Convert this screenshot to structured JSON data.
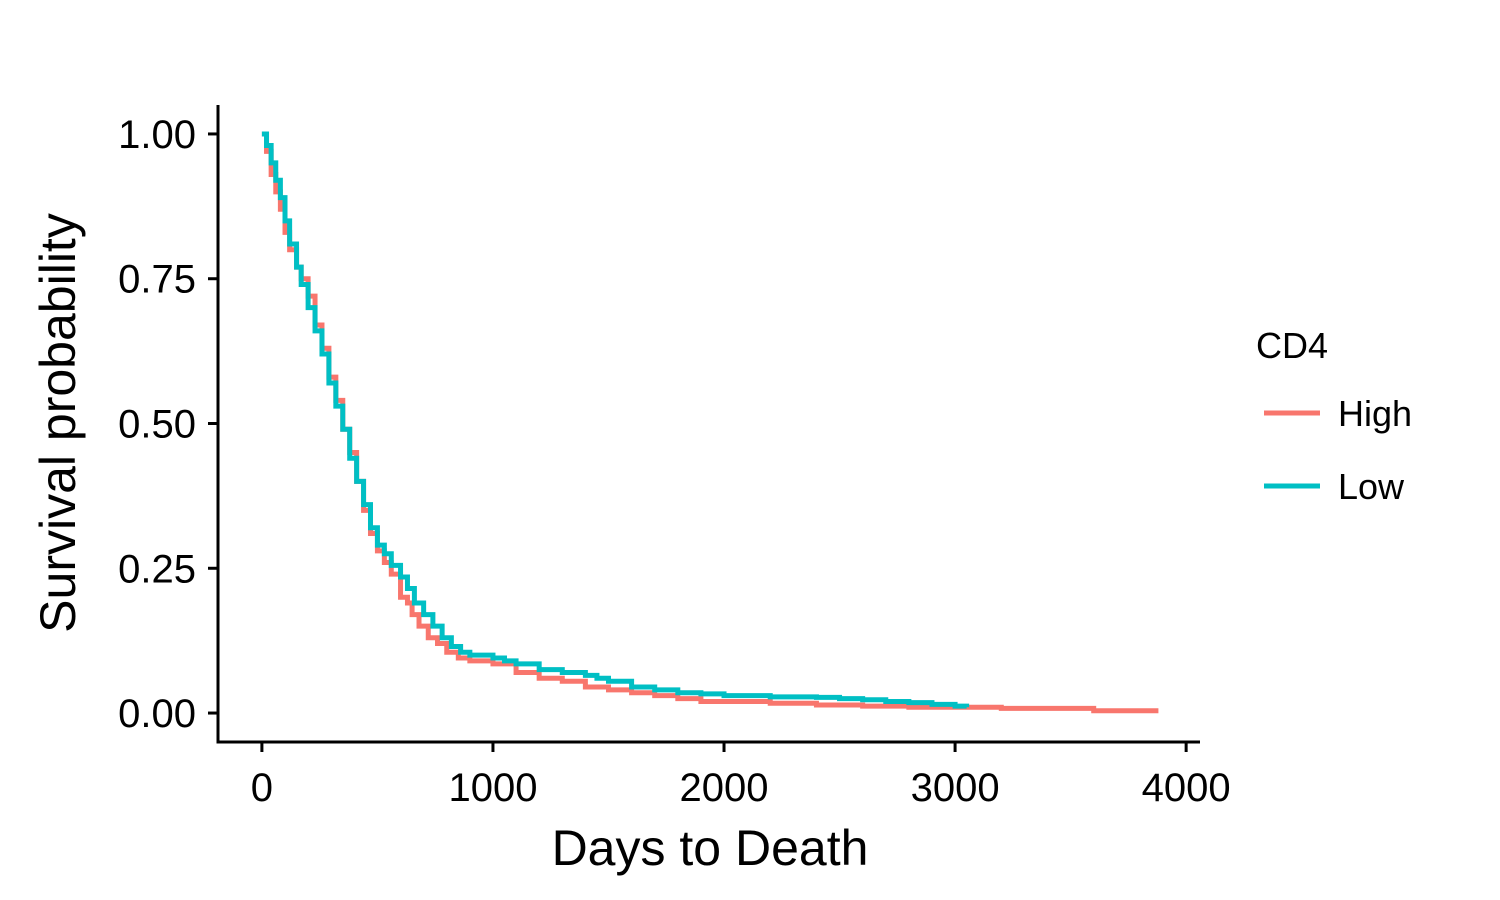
{
  "chart_data": {
    "type": "line",
    "xlabel": "Days to Death",
    "ylabel": "Survival probability",
    "xlim": [
      -190,
      4060
    ],
    "ylim": [
      -0.05,
      1.05
    ],
    "xticks": [
      0,
      1000,
      2000,
      3000,
      4000
    ],
    "xtick_labels": [
      "0",
      "1000",
      "2000",
      "3000",
      "4000"
    ],
    "yticks": [
      0,
      0.25,
      0.5,
      0.75,
      1.0
    ],
    "ytick_labels": [
      "0.00",
      "0.25",
      "0.50",
      "0.75",
      "1.00"
    ],
    "grid": false,
    "legend": {
      "title": "CD4",
      "placement": "right"
    },
    "series": [
      {
        "name": "High",
        "color": "#F8766D",
        "x": [
          0,
          20,
          40,
          60,
          80,
          100,
          120,
          150,
          170,
          200,
          230,
          260,
          290,
          320,
          350,
          380,
          410,
          440,
          470,
          500,
          530,
          560,
          600,
          630,
          650,
          680,
          720,
          760,
          800,
          850,
          900,
          1000,
          1100,
          1200,
          1300,
          1400,
          1500,
          1600,
          1700,
          1800,
          1900,
          2000,
          2200,
          2400,
          2600,
          2800,
          3000,
          3200,
          3400,
          3530,
          3600,
          3800,
          3880
        ],
        "y": [
          1.0,
          0.97,
          0.93,
          0.9,
          0.87,
          0.83,
          0.8,
          0.77,
          0.75,
          0.72,
          0.67,
          0.63,
          0.58,
          0.54,
          0.49,
          0.45,
          0.4,
          0.35,
          0.31,
          0.28,
          0.26,
          0.24,
          0.2,
          0.19,
          0.17,
          0.15,
          0.13,
          0.12,
          0.105,
          0.095,
          0.09,
          0.085,
          0.07,
          0.06,
          0.055,
          0.045,
          0.04,
          0.035,
          0.03,
          0.025,
          0.02,
          0.02,
          0.017,
          0.014,
          0.012,
          0.01,
          0.01,
          0.008,
          0.008,
          0.008,
          0.004,
          0.004,
          0.004
        ]
      },
      {
        "name": "Low",
        "color": "#00BFC4",
        "x": [
          0,
          20,
          40,
          60,
          80,
          100,
          120,
          150,
          170,
          200,
          230,
          260,
          290,
          320,
          350,
          380,
          410,
          440,
          470,
          500,
          530,
          560,
          600,
          630,
          660,
          700,
          740,
          780,
          820,
          860,
          900,
          1000,
          1050,
          1100,
          1200,
          1300,
          1400,
          1450,
          1500,
          1600,
          1700,
          1800,
          1900,
          2000,
          2200,
          2400,
          2500,
          2600,
          2700,
          2800,
          2900,
          3000,
          3050
        ],
        "y": [
          1.0,
          0.98,
          0.95,
          0.92,
          0.89,
          0.85,
          0.81,
          0.77,
          0.74,
          0.7,
          0.66,
          0.62,
          0.57,
          0.53,
          0.49,
          0.44,
          0.4,
          0.36,
          0.32,
          0.29,
          0.275,
          0.255,
          0.235,
          0.215,
          0.19,
          0.17,
          0.15,
          0.13,
          0.115,
          0.105,
          0.1,
          0.095,
          0.09,
          0.085,
          0.075,
          0.07,
          0.065,
          0.06,
          0.055,
          0.045,
          0.04,
          0.035,
          0.033,
          0.03,
          0.028,
          0.027,
          0.025,
          0.023,
          0.02,
          0.018,
          0.015,
          0.012,
          0.01
        ]
      }
    ]
  }
}
